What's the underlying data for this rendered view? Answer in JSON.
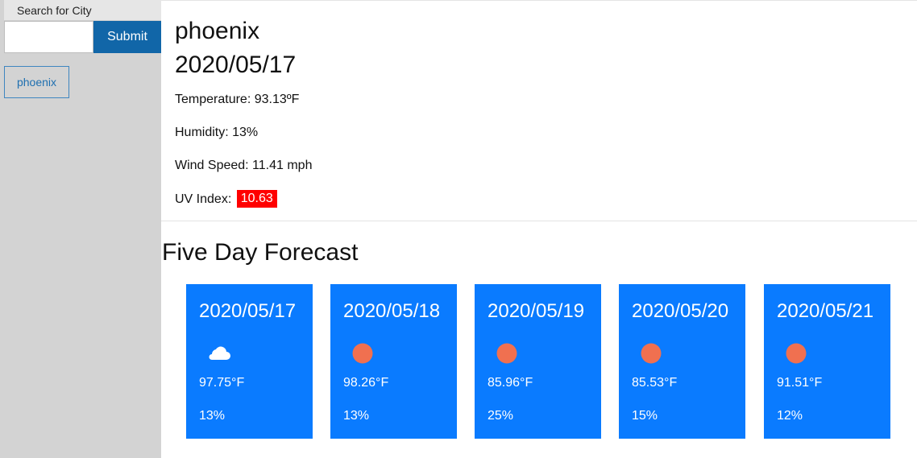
{
  "search": {
    "label": "Search for City",
    "input_value": "",
    "input_placeholder": "",
    "submit_label": "Submit"
  },
  "history": [
    {
      "label": "phoenix"
    }
  ],
  "current": {
    "city": "phoenix",
    "date": "2020/05/17",
    "temperature_label": "Temperature: 93.13ºF",
    "humidity_label": "Humidity: 13%",
    "wind_label": "Wind Speed: 11.41 mph",
    "uv_label": "UV Index:",
    "uv_value": "10.63",
    "uv_color": "#ff0000"
  },
  "forecast": {
    "heading": "Five Day Forecast",
    "card_color": "#0a7bff",
    "days": [
      {
        "date": "2020/05/17",
        "icon": "cloud-icon",
        "temp": "97.75°F",
        "humidity": "13%"
      },
      {
        "date": "2020/05/18",
        "icon": "sun-icon",
        "temp": "98.26°F",
        "humidity": "13%"
      },
      {
        "date": "2020/05/19",
        "icon": "sun-icon",
        "temp": "85.96°F",
        "humidity": "25%"
      },
      {
        "date": "2020/05/20",
        "icon": "sun-icon",
        "temp": "85.53°F",
        "humidity": "15%"
      },
      {
        "date": "2020/05/21",
        "icon": "sun-icon",
        "temp": "91.51°F",
        "humidity": "12%"
      }
    ]
  }
}
